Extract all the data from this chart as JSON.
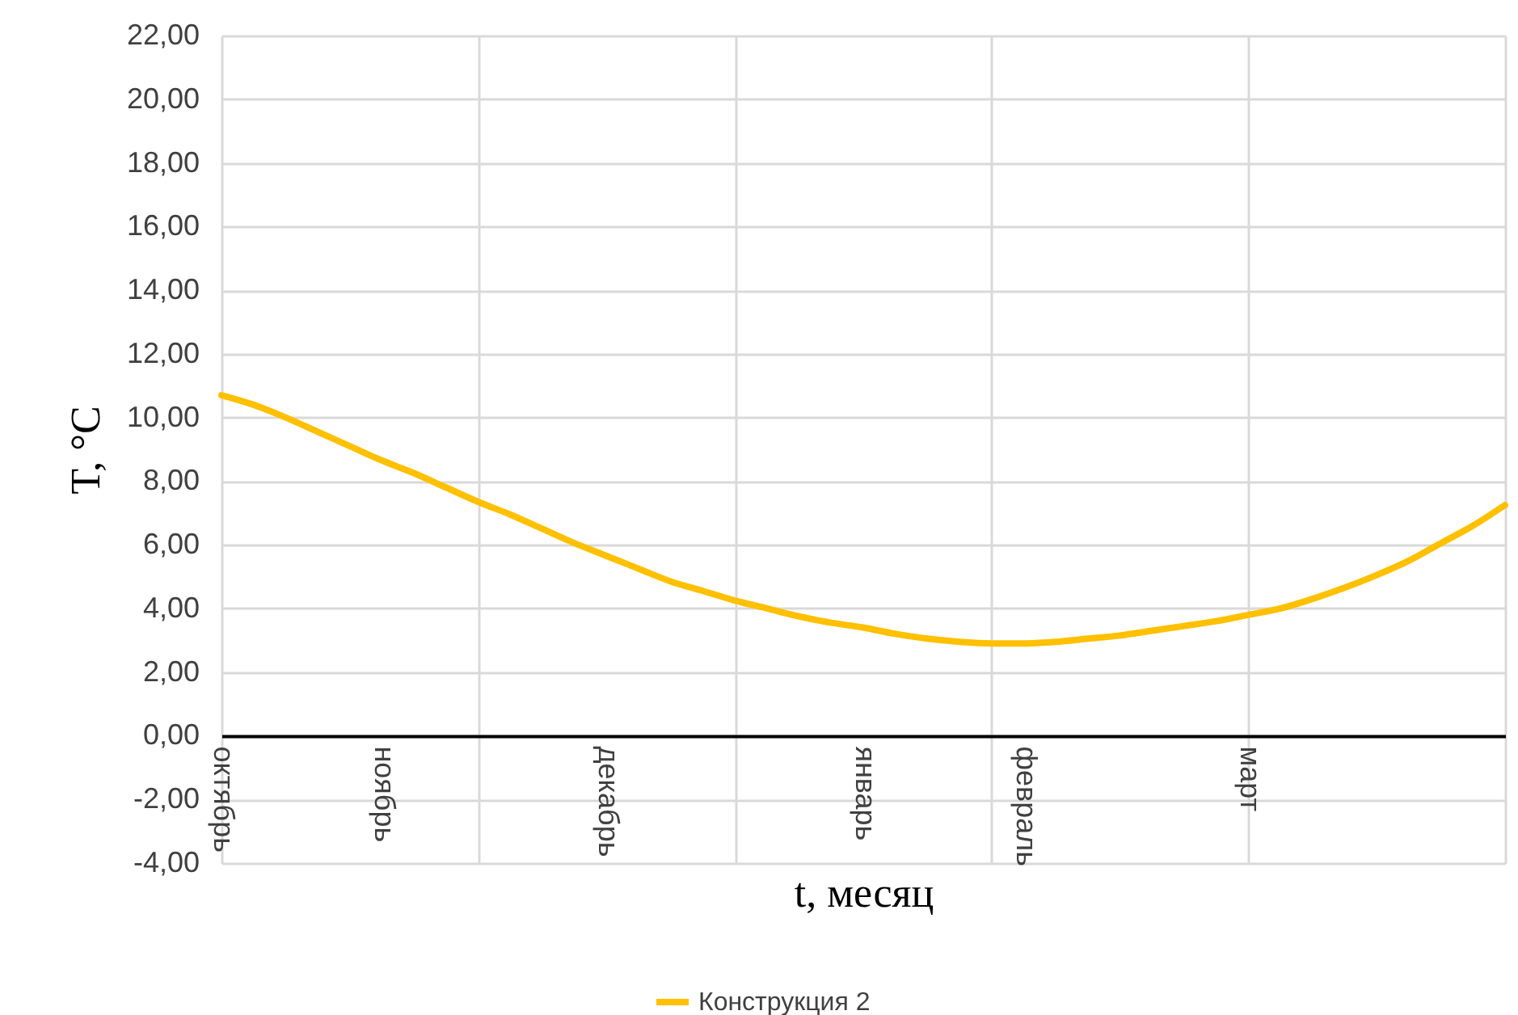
{
  "chart_data": {
    "type": "line",
    "xlabel": "t, месяц",
    "ylabel": "T, °C",
    "categories": [
      "октябрь",
      null,
      null,
      null,
      null,
      "ноябрь",
      null,
      null,
      null,
      null,
      null,
      null,
      "декабрь",
      null,
      null,
      null,
      null,
      null,
      null,
      null,
      "январь",
      null,
      null,
      null,
      null,
      "февраль",
      null,
      null,
      null,
      null,
      null,
      null,
      "март",
      null,
      null,
      null,
      null,
      null,
      null,
      null,
      null
    ],
    "series": [
      {
        "name": "Конструкция 2",
        "color": "#ffc000",
        "values": [
          10.7,
          10.4,
          10.0,
          9.55,
          9.1,
          8.65,
          8.25,
          7.8,
          7.35,
          6.95,
          6.5,
          6.05,
          5.65,
          5.25,
          4.85,
          4.55,
          4.25,
          4.0,
          3.75,
          3.55,
          3.4,
          3.2,
          3.05,
          2.95,
          2.9,
          2.9,
          2.95,
          3.05,
          3.15,
          3.3,
          3.45,
          3.6,
          3.8,
          4.0,
          4.3,
          4.65,
          5.05,
          5.5,
          6.05,
          6.6,
          7.25
        ]
      }
    ],
    "ylim": [
      -4,
      22
    ],
    "yticks": [
      {
        "value": -4,
        "label": "-4,00"
      },
      {
        "value": -2,
        "label": "-2,00"
      },
      {
        "value": 0,
        "label": "0,00"
      },
      {
        "value": 2,
        "label": "2,00"
      },
      {
        "value": 4,
        "label": "4,00"
      },
      {
        "value": 6,
        "label": "6,00"
      },
      {
        "value": 8,
        "label": "8,00"
      },
      {
        "value": 10,
        "label": "10,00"
      },
      {
        "value": 12,
        "label": "12,00"
      },
      {
        "value": 14,
        "label": "14,00"
      },
      {
        "value": 16,
        "label": "16,00"
      },
      {
        "value": 18,
        "label": "18,00"
      },
      {
        "value": 20,
        "label": "20,00"
      },
      {
        "value": 22,
        "label": "22,00"
      }
    ],
    "grid": true,
    "legend": "bottom",
    "marker": "none",
    "line_style": "solid"
  }
}
